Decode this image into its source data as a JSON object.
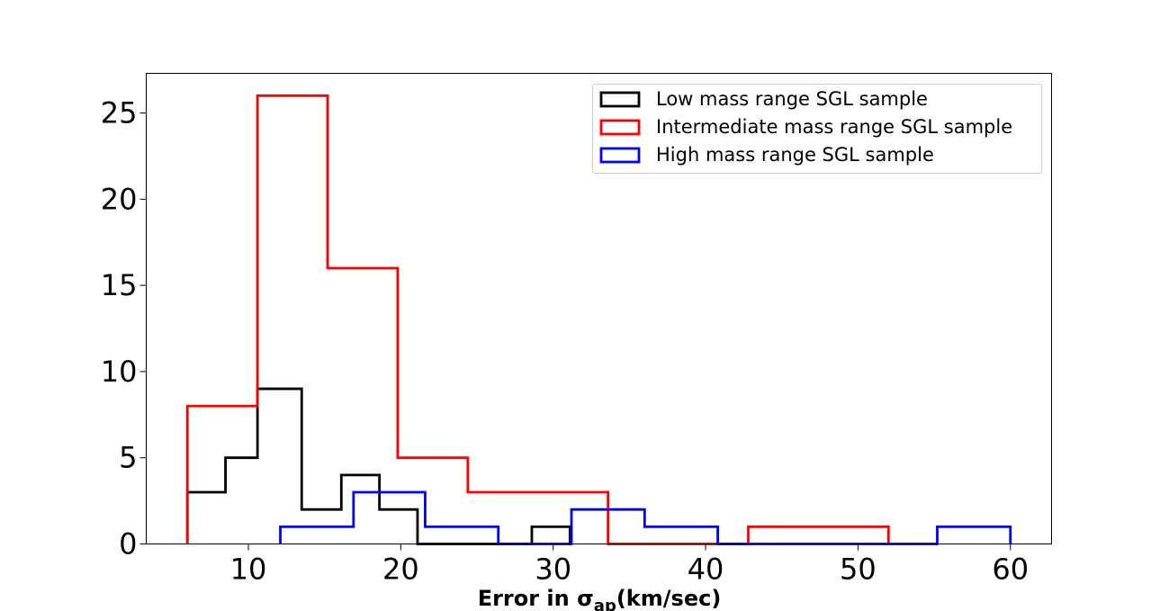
{
  "chart_data": {
    "type": "histogram",
    "xlabel": {
      "main": "Error in σ",
      "sub": "ap",
      "suffix": "(km/sec)"
    },
    "ylabel": "",
    "xlim": [
      3.3,
      62.7
    ],
    "ylim": [
      0,
      27.3
    ],
    "xticks": [
      10,
      20,
      30,
      40,
      50,
      60
    ],
    "yticks": [
      0,
      5,
      10,
      15,
      20,
      25
    ],
    "grid": false,
    "legend_position": "top-right",
    "series": [
      {
        "name": "Low mass range SGL sample",
        "color": "#000000",
        "bin_edges": [
          6.0,
          8.5,
          10.6,
          13.5,
          16.1,
          18.6,
          21.1,
          23.6,
          26.1,
          28.6,
          31.1
        ],
        "counts": [
          3,
          5,
          9,
          2,
          4,
          2,
          0,
          0,
          0,
          1
        ]
      },
      {
        "name": "Intermediate mass range SGL sample",
        "color": "#ff0000",
        "bin_edges": [
          6.0,
          10.6,
          15.2,
          19.8,
          24.4,
          29.0,
          33.6,
          38.2,
          42.8,
          47.4,
          52.0
        ],
        "counts": [
          8,
          26,
          16,
          5,
          3,
          3,
          0,
          0,
          1,
          1
        ]
      },
      {
        "name": "High mass range SGL sample",
        "color": "#0000ff",
        "bin_edges": [
          12.1,
          16.9,
          21.6,
          26.4,
          31.2,
          36.0,
          40.8,
          45.6,
          50.4,
          55.2,
          60.0
        ],
        "counts": [
          1,
          3,
          1,
          0,
          2,
          1,
          0,
          0,
          0,
          1
        ]
      }
    ]
  }
}
